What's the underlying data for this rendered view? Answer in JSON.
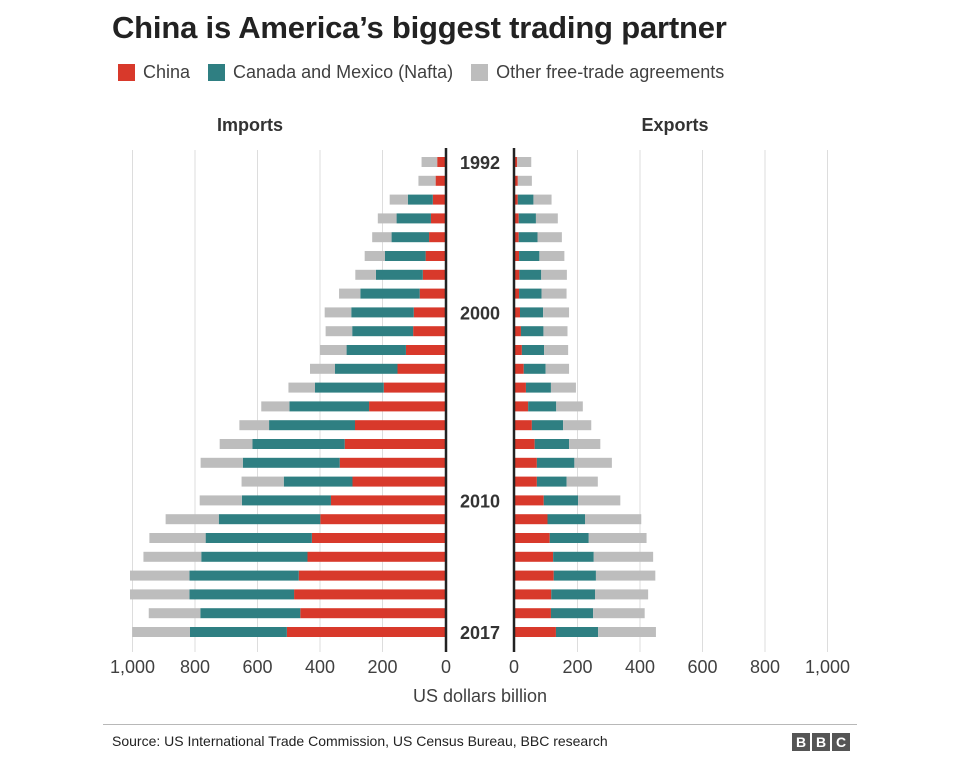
{
  "title": "China is America’s biggest trading partner",
  "legend": [
    {
      "label": "China",
      "color": "#d8392b"
    },
    {
      "label": "Canada and Mexico (Nafta)",
      "color": "#2f7f82"
    },
    {
      "label": "Other free-trade agreements",
      "color": "#bdbdbd"
    }
  ],
  "source": "Source: US International Trade Commission, US Census Bureau, BBC research",
  "logo": [
    "B",
    "B",
    "C"
  ],
  "chart_data": {
    "type": "bar",
    "orientation": "horizontal",
    "layout": "butterfly-stacked",
    "panels": [
      {
        "title": "Imports",
        "direction": "left"
      },
      {
        "title": "Exports",
        "direction": "right"
      }
    ],
    "categories": [
      1992,
      1993,
      1994,
      1995,
      1996,
      1997,
      1998,
      1999,
      2000,
      2001,
      2002,
      2003,
      2004,
      2005,
      2006,
      2007,
      2008,
      2009,
      2010,
      2011,
      2012,
      2013,
      2014,
      2015,
      2016,
      2017
    ],
    "category_labels": {
      "1992": "1992",
      "2000": "2000",
      "2010": "2010",
      "2017": "2017"
    },
    "xlabel": "US dollars billion",
    "xlim": [
      0,
      1000
    ],
    "xticks": [
      0,
      200,
      400,
      600,
      800,
      1000
    ],
    "xtick_labels": [
      "0",
      "200",
      "400",
      "600",
      "800",
      "1,000"
    ],
    "grid": true,
    "series": [
      {
        "name": "China",
        "color": "#d8392b",
        "imports": [
          25,
          30,
          39,
          45,
          51,
          62,
          71,
          81,
          100,
          102,
          125,
          152,
          196,
          243,
          288,
          321,
          337,
          296,
          365,
          399,
          426,
          440,
          468,
          483,
          463,
          506
        ],
        "exports": [
          7,
          9,
          9,
          12,
          12,
          13,
          14,
          13,
          16,
          19,
          22,
          28,
          35,
          42,
          54,
          63,
          70,
          70,
          92,
          104,
          111,
          122,
          124,
          116,
          115,
          131
        ]
      },
      {
        "name": "Canada and Mexico (Nafta)",
        "color": "#2f7f82",
        "imports": [
          0,
          0,
          80,
          110,
          120,
          130,
          150,
          190,
          200,
          195,
          190,
          200,
          220,
          255,
          275,
          295,
          310,
          220,
          285,
          325,
          340,
          340,
          350,
          335,
          320,
          310
        ],
        "exports": [
          0,
          0,
          50,
          55,
          60,
          65,
          70,
          72,
          74,
          72,
          71,
          70,
          80,
          90,
          100,
          110,
          120,
          95,
          110,
          120,
          125,
          130,
          135,
          140,
          135,
          135
        ],
        "note": "No Nafta segment is shown for 1992-1993"
      },
      {
        "name": "Other free-trade agreements",
        "color": "#bdbdbd",
        "imports": [
          50,
          55,
          58,
          60,
          62,
          65,
          66,
          68,
          85,
          85,
          85,
          80,
          85,
          90,
          95,
          105,
          135,
          135,
          135,
          170,
          180,
          185,
          190,
          190,
          165,
          185
        ],
        "exports": [
          45,
          45,
          58,
          70,
          78,
          80,
          82,
          80,
          83,
          77,
          77,
          75,
          80,
          85,
          90,
          100,
          120,
          100,
          135,
          180,
          185,
          190,
          190,
          170,
          165,
          185
        ]
      }
    ]
  }
}
